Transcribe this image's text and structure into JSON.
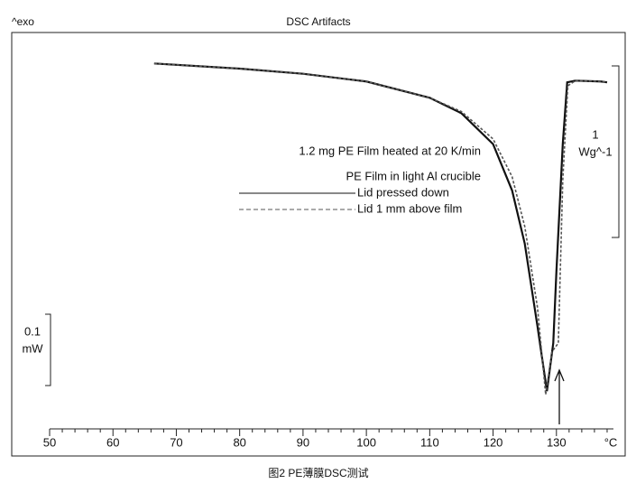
{
  "chart_data": {
    "type": "line",
    "title": "DSC Artifacts",
    "y_label": "^exo",
    "x_unit": "°C",
    "caption": "图2 PE薄膜DSC测试",
    "annotation": "1.2 mg PE Film heated at 20 K/min",
    "legend_title": "PE Film in light Al crucible",
    "scale_bar_1": {
      "value": "1",
      "unit": "Wg^-1"
    },
    "scale_bar_2": {
      "value": "0.1",
      "unit": "mW"
    },
    "xlim": [
      50,
      139
    ],
    "xticks": [
      50,
      60,
      70,
      80,
      90,
      100,
      110,
      120,
      130
    ],
    "xminorticks": [
      52,
      54,
      56,
      58,
      62,
      64,
      66,
      68,
      72,
      74,
      76,
      78,
      82,
      84,
      86,
      88,
      92,
      94,
      96,
      98,
      102,
      104,
      106,
      108,
      112,
      114,
      116,
      118,
      122,
      124,
      126,
      128,
      132,
      134,
      136,
      138
    ],
    "ylim": [
      -2.13,
      0.17
    ],
    "series": [
      {
        "name": "Lid pressed down",
        "color": "#111111",
        "dash": false,
        "x": [
          66.5,
          80,
          90,
          100,
          110,
          115,
          120,
          123,
          125,
          127,
          128.5,
          129.5,
          130,
          131,
          131.7,
          133,
          137,
          138
        ],
        "values": [
          0,
          -0.03,
          -0.06,
          -0.105,
          -0.2,
          -0.29,
          -0.47,
          -0.74,
          -1.05,
          -1.53,
          -1.91,
          -1.63,
          -1.21,
          -0.47,
          -0.11,
          -0.1,
          -0.105,
          -0.11
        ]
      },
      {
        "name": "Lid 1 mm above film",
        "color": "#555555",
        "dash": true,
        "x": [
          66.5,
          80,
          90,
          100,
          110,
          115,
          120,
          123,
          125,
          127,
          128.3,
          129.3,
          130.3,
          131,
          131.8,
          133,
          137,
          138
        ],
        "values": [
          0,
          -0.03,
          -0.06,
          -0.105,
          -0.2,
          -0.28,
          -0.44,
          -0.66,
          -0.95,
          -1.42,
          -1.93,
          -1.68,
          -1.63,
          -0.68,
          -0.13,
          -0.1,
          -0.105,
          -0.11
        ]
      }
    ]
  }
}
